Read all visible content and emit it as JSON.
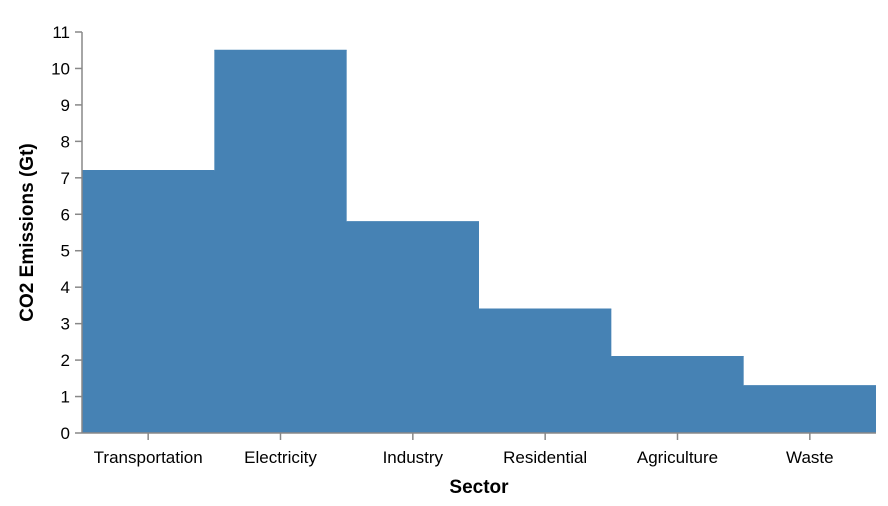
{
  "chart_data": {
    "type": "area",
    "interpolation": "step",
    "categories": [
      "Transportation",
      "Electricity",
      "Industry",
      "Residential",
      "Agriculture",
      "Waste"
    ],
    "values": [
      7.2,
      10.5,
      5.8,
      3.4,
      2.1,
      1.3
    ],
    "xlabel": "Sector",
    "ylabel": "CO2 Emissions (Gt)",
    "ylim": [
      0,
      11
    ],
    "yticks": [
      0,
      1,
      2,
      3,
      4,
      5,
      6,
      7,
      8,
      9,
      10,
      11
    ],
    "grid": false,
    "color": "#4682b4"
  }
}
